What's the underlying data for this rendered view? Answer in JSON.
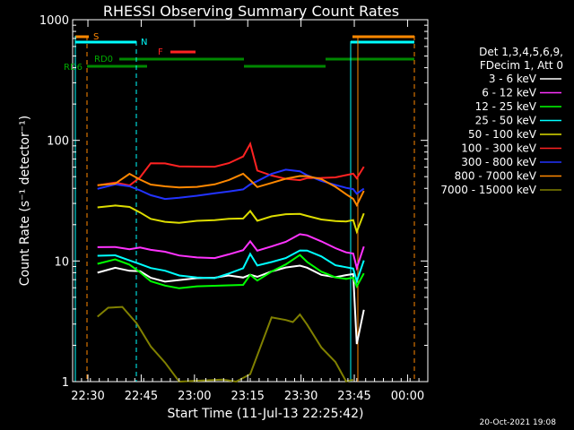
{
  "chart_data": {
    "type": "line",
    "title": "RHESSI Observing Summary Count Rates",
    "xlabel": "Start Time (11-Jul-13 22:25:42)",
    "ylabel": "Count Rate (s⁻¹ detector⁻¹)",
    "yscale": "log",
    "ylim": [
      1,
      1000
    ],
    "xlim_minutes_after_start": [
      0,
      100
    ],
    "y_ticks": [
      "1",
      "10",
      "100",
      "1000"
    ],
    "x_ticks": [
      {
        "label": "22:30",
        "t": 4.3
      },
      {
        "label": "22:45",
        "t": 19.3
      },
      {
        "label": "23:00",
        "t": 34.3
      },
      {
        "label": "23:15",
        "t": 49.3
      },
      {
        "label": "23:30",
        "t": 64.3
      },
      {
        "label": "23:45",
        "t": 79.3
      },
      {
        "label": "00:00",
        "t": 94.3
      }
    ],
    "legend_header": [
      "Det 1,3,4,5,6,9,",
      "FDecim 1, Att 0"
    ],
    "series": [
      {
        "name": "3 - 6 keV",
        "color": "#ffffff",
        "x": [
          7,
          12,
          16,
          19,
          22,
          26,
          30,
          35,
          40,
          44,
          48,
          50,
          52,
          56,
          60,
          64,
          66,
          70,
          74,
          77,
          79,
          80,
          82
        ],
        "y": [
          8,
          8.5,
          8,
          8.2,
          7.5,
          7,
          7,
          7,
          7,
          7.5,
          7.5,
          8,
          7.5,
          8,
          8.5,
          9,
          9,
          8,
          7.5,
          7.5,
          7.5,
          2,
          4
        ]
      },
      {
        "name": "6 - 12 keV",
        "color": "#ff33ff",
        "x": [
          7,
          12,
          16,
          19,
          22,
          26,
          30,
          35,
          40,
          44,
          48,
          50,
          52,
          56,
          60,
          64,
          66,
          70,
          74,
          77,
          79,
          80,
          82
        ],
        "y": [
          13,
          13.5,
          13,
          13,
          12,
          11.5,
          11,
          11,
          11,
          11.5,
          12,
          14,
          12,
          13.5,
          15,
          17,
          16,
          14,
          12.5,
          12,
          12,
          9,
          13
        ]
      },
      {
        "name": "12 - 25 keV",
        "color": "#00ff00",
        "x": [
          7,
          12,
          16,
          19,
          22,
          26,
          30,
          35,
          40,
          44,
          48,
          50,
          52,
          56,
          60,
          64,
          66,
          70,
          74,
          77,
          79,
          80,
          82
        ],
        "y": [
          9.5,
          10,
          9,
          8,
          7,
          6.5,
          6,
          6,
          6,
          6.2,
          6.5,
          8,
          7,
          8,
          9,
          11,
          10,
          8.5,
          7.5,
          7,
          7,
          6,
          8
        ]
      },
      {
        "name": "25 - 50 keV",
        "color": "#00ffff",
        "x": [
          7,
          12,
          16,
          19,
          22,
          26,
          30,
          35,
          40,
          44,
          48,
          50,
          52,
          56,
          60,
          64,
          66,
          70,
          74,
          77,
          79,
          80,
          82
        ],
        "y": [
          11,
          11.5,
          10.5,
          9.5,
          8.5,
          8,
          7.5,
          7.5,
          7.5,
          8,
          8.5,
          11,
          9,
          10,
          11,
          12.5,
          12,
          10.5,
          9,
          9,
          9,
          7,
          10
        ]
      },
      {
        "name": "50 - 100 keV",
        "color": "#dddd00",
        "x": [
          7,
          12,
          16,
          19,
          22,
          26,
          30,
          35,
          40,
          44,
          48,
          50,
          52,
          56,
          60,
          64,
          66,
          70,
          74,
          77,
          79,
          80,
          82
        ],
        "y": [
          28,
          28,
          27,
          25,
          23,
          22,
          21,
          21,
          21,
          22,
          23,
          27,
          22,
          23,
          23.5,
          24,
          24,
          23,
          22,
          21,
          21,
          17,
          25
        ]
      },
      {
        "name": "100 - 300 keV",
        "color": "#ff2222",
        "x": [
          7,
          12,
          16,
          19,
          22,
          26,
          30,
          35,
          40,
          44,
          48,
          50,
          52,
          56,
          60,
          64,
          66,
          70,
          74,
          77,
          79,
          80,
          82
        ],
        "y": [
          42,
          46,
          44,
          50,
          63,
          62,
          60,
          62,
          63,
          66,
          72,
          90,
          55,
          52,
          50,
          48,
          48,
          47,
          48,
          52,
          55,
          50,
          60
        ]
      },
      {
        "name": "300 - 800 keV",
        "color": "#2233ff",
        "x": [
          7,
          12,
          16,
          19,
          22,
          26,
          30,
          35,
          40,
          44,
          48,
          50,
          52,
          56,
          60,
          64,
          66,
          70,
          74,
          77,
          79,
          80,
          82
        ],
        "y": [
          40,
          42,
          40,
          38,
          36,
          34,
          34,
          34,
          35,
          37,
          40,
          45,
          47,
          52,
          55,
          54,
          52,
          48,
          44,
          40,
          38,
          35,
          40
        ]
      },
      {
        "name": "800 - 7000 keV",
        "color": "#ff8800",
        "x": [
          7,
          12,
          16,
          19,
          22,
          26,
          30,
          35,
          40,
          44,
          48,
          50,
          52,
          56,
          60,
          64,
          66,
          70,
          74,
          77,
          79,
          80,
          82
        ],
        "y": [
          42,
          45,
          55,
          48,
          42,
          40,
          40,
          42,
          45,
          48,
          52,
          45,
          40,
          45,
          50,
          52,
          50,
          46,
          40,
          36,
          34,
          30,
          38
        ]
      },
      {
        "name": "7000 - 15000 keV",
        "color": "#808000",
        "x": [
          7,
          10,
          14,
          18,
          22,
          26,
          30,
          36,
          42,
          44,
          46,
          50,
          56,
          60,
          62,
          64,
          66,
          70,
          74,
          77,
          79
        ],
        "y": [
          3.5,
          4,
          4,
          3,
          2,
          1.5,
          1,
          1,
          1,
          1,
          1,
          1.2,
          3.5,
          3.2,
          3,
          3.5,
          3,
          2,
          1.5,
          1,
          1
        ]
      }
    ],
    "markers": [
      {
        "label": "S",
        "color": "#ff8800"
      },
      {
        "label": "N",
        "color": "#00ffff"
      },
      {
        "label": "F",
        "color": "#ff2222"
      },
      {
        "label": "RD0",
        "color": "#00aa00"
      },
      {
        "label": "RD6",
        "color": "#00aa00"
      }
    ],
    "timestamp": "20-Oct-2021 19:08"
  }
}
